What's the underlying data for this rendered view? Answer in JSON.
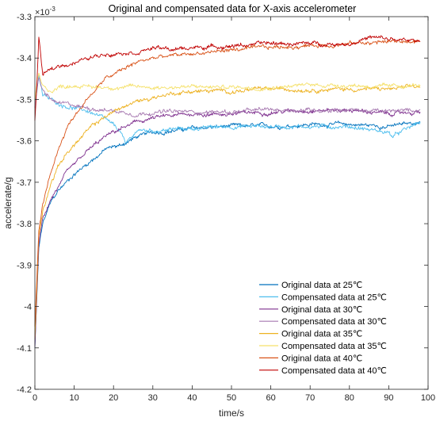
{
  "chart_data": {
    "type": "line",
    "title": "Original and compensated data for X-axis accelerometer",
    "xlabel": "time/s",
    "ylabel": "accelerate/g",
    "y_exponent_label": "×10",
    "y_exponent_power": "-3",
    "xlim": [
      0,
      100
    ],
    "ylim": [
      -4.2,
      -3.3
    ],
    "x_ticks": [
      0,
      10,
      20,
      30,
      40,
      50,
      60,
      70,
      80,
      90,
      100
    ],
    "y_ticks": [
      -3.3,
      -3.4,
      -3.5,
      -3.6,
      -3.7,
      -3.8,
      -3.9,
      -4,
      -4.1,
      -4.2
    ],
    "x_tick_labels": [
      "0",
      "10",
      "20",
      "30",
      "40",
      "50",
      "60",
      "70",
      "80",
      "90",
      "100"
    ],
    "y_tick_labels": [
      "-3.3",
      "-3.4",
      "-3.5",
      "-3.6",
      "-3.7",
      "-3.8",
      "-3.9",
      "-4",
      "-4.1",
      "-4.2"
    ],
    "grid": false,
    "legend_position": "bottom-right",
    "series": [
      {
        "name": "Original data at 25℃",
        "color": "#0072BD",
        "x": [
          0,
          1,
          2,
          4,
          6,
          8,
          10,
          14,
          18,
          22,
          26,
          30,
          35,
          40,
          50,
          60,
          70,
          80,
          90,
          98
        ],
        "y": [
          -4.1,
          -3.86,
          -3.8,
          -3.75,
          -3.72,
          -3.7,
          -3.68,
          -3.65,
          -3.62,
          -3.61,
          -3.59,
          -3.58,
          -3.575,
          -3.57,
          -3.565,
          -3.565,
          -3.56,
          -3.56,
          -3.565,
          -3.555
        ]
      },
      {
        "name": "Compensated data at 25℃",
        "color": "#4DBEEE",
        "x": [
          0,
          0.5,
          1,
          2,
          4,
          6,
          10,
          14,
          18,
          22,
          23,
          26,
          30,
          40,
          50,
          60,
          70,
          80,
          90,
          91,
          98
        ],
        "y": [
          -3.5,
          -3.48,
          -3.44,
          -3.49,
          -3.5,
          -3.51,
          -3.52,
          -3.53,
          -3.55,
          -3.58,
          -3.61,
          -3.575,
          -3.575,
          -3.57,
          -3.565,
          -3.565,
          -3.565,
          -3.565,
          -3.58,
          -3.59,
          -3.555
        ]
      },
      {
        "name": "Original data at 30℃",
        "color": "#7E2F8E",
        "x": [
          0,
          1,
          2,
          4,
          6,
          8,
          10,
          14,
          18,
          22,
          26,
          30,
          35,
          40,
          50,
          60,
          70,
          80,
          90,
          98
        ],
        "y": [
          -4.1,
          -3.85,
          -3.79,
          -3.74,
          -3.71,
          -3.68,
          -3.66,
          -3.62,
          -3.59,
          -3.57,
          -3.555,
          -3.545,
          -3.54,
          -3.535,
          -3.535,
          -3.53,
          -3.525,
          -3.525,
          -3.535,
          -3.53
        ]
      },
      {
        "name": "Compensated data at 30℃",
        "color": "#A678B0",
        "x": [
          0,
          0.5,
          1,
          2,
          4,
          6,
          10,
          14,
          18,
          22,
          26,
          30,
          40,
          50,
          60,
          70,
          80,
          90,
          98
        ],
        "y": [
          -3.52,
          -3.48,
          -3.45,
          -3.48,
          -3.5,
          -3.51,
          -3.515,
          -3.52,
          -3.525,
          -3.53,
          -3.535,
          -3.53,
          -3.53,
          -3.53,
          -3.525,
          -3.525,
          -3.525,
          -3.53,
          -3.525
        ]
      },
      {
        "name": "Original data at 35℃",
        "color": "#EDB120",
        "x": [
          0,
          1,
          2,
          4,
          6,
          8,
          10,
          14,
          18,
          22,
          26,
          30,
          35,
          40,
          50,
          60,
          70,
          80,
          90,
          98
        ],
        "y": [
          -4.08,
          -3.83,
          -3.77,
          -3.7,
          -3.66,
          -3.63,
          -3.61,
          -3.57,
          -3.54,
          -3.52,
          -3.505,
          -3.495,
          -3.485,
          -3.48,
          -3.48,
          -3.475,
          -3.475,
          -3.475,
          -3.475,
          -3.47
        ]
      },
      {
        "name": "Compensated data at 35℃",
        "color": "#F5E16B",
        "x": [
          0,
          0.5,
          1,
          2,
          4,
          6,
          10,
          14,
          18,
          22,
          26,
          30,
          40,
          50,
          60,
          70,
          80,
          90,
          98
        ],
        "y": [
          -3.5,
          -3.46,
          -3.44,
          -3.47,
          -3.48,
          -3.47,
          -3.465,
          -3.47,
          -3.47,
          -3.47,
          -3.47,
          -3.47,
          -3.47,
          -3.47,
          -3.47,
          -3.465,
          -3.465,
          -3.47,
          -3.465
        ]
      },
      {
        "name": "Original data at 40℃",
        "color": "#D95319",
        "x": [
          0,
          1,
          2,
          4,
          6,
          8,
          10,
          14,
          18,
          22,
          26,
          30,
          35,
          40,
          50,
          60,
          70,
          80,
          90,
          98
        ],
        "y": [
          -4.05,
          -3.82,
          -3.76,
          -3.68,
          -3.62,
          -3.57,
          -3.54,
          -3.49,
          -3.45,
          -3.43,
          -3.41,
          -3.4,
          -3.395,
          -3.39,
          -3.38,
          -3.375,
          -3.37,
          -3.365,
          -3.36,
          -3.36
        ]
      },
      {
        "name": "Compensated data at 40℃",
        "color": "#C00000",
        "x": [
          0,
          0.5,
          1,
          2,
          4,
          6,
          10,
          14,
          18,
          22,
          26,
          30,
          35,
          40,
          50,
          60,
          70,
          80,
          85,
          90,
          98
        ],
        "y": [
          -3.55,
          -3.47,
          -3.35,
          -3.44,
          -3.43,
          -3.42,
          -3.41,
          -3.4,
          -3.39,
          -3.385,
          -3.385,
          -3.375,
          -3.38,
          -3.375,
          -3.37,
          -3.365,
          -3.365,
          -3.365,
          -3.35,
          -3.355,
          -3.36
        ]
      }
    ]
  }
}
